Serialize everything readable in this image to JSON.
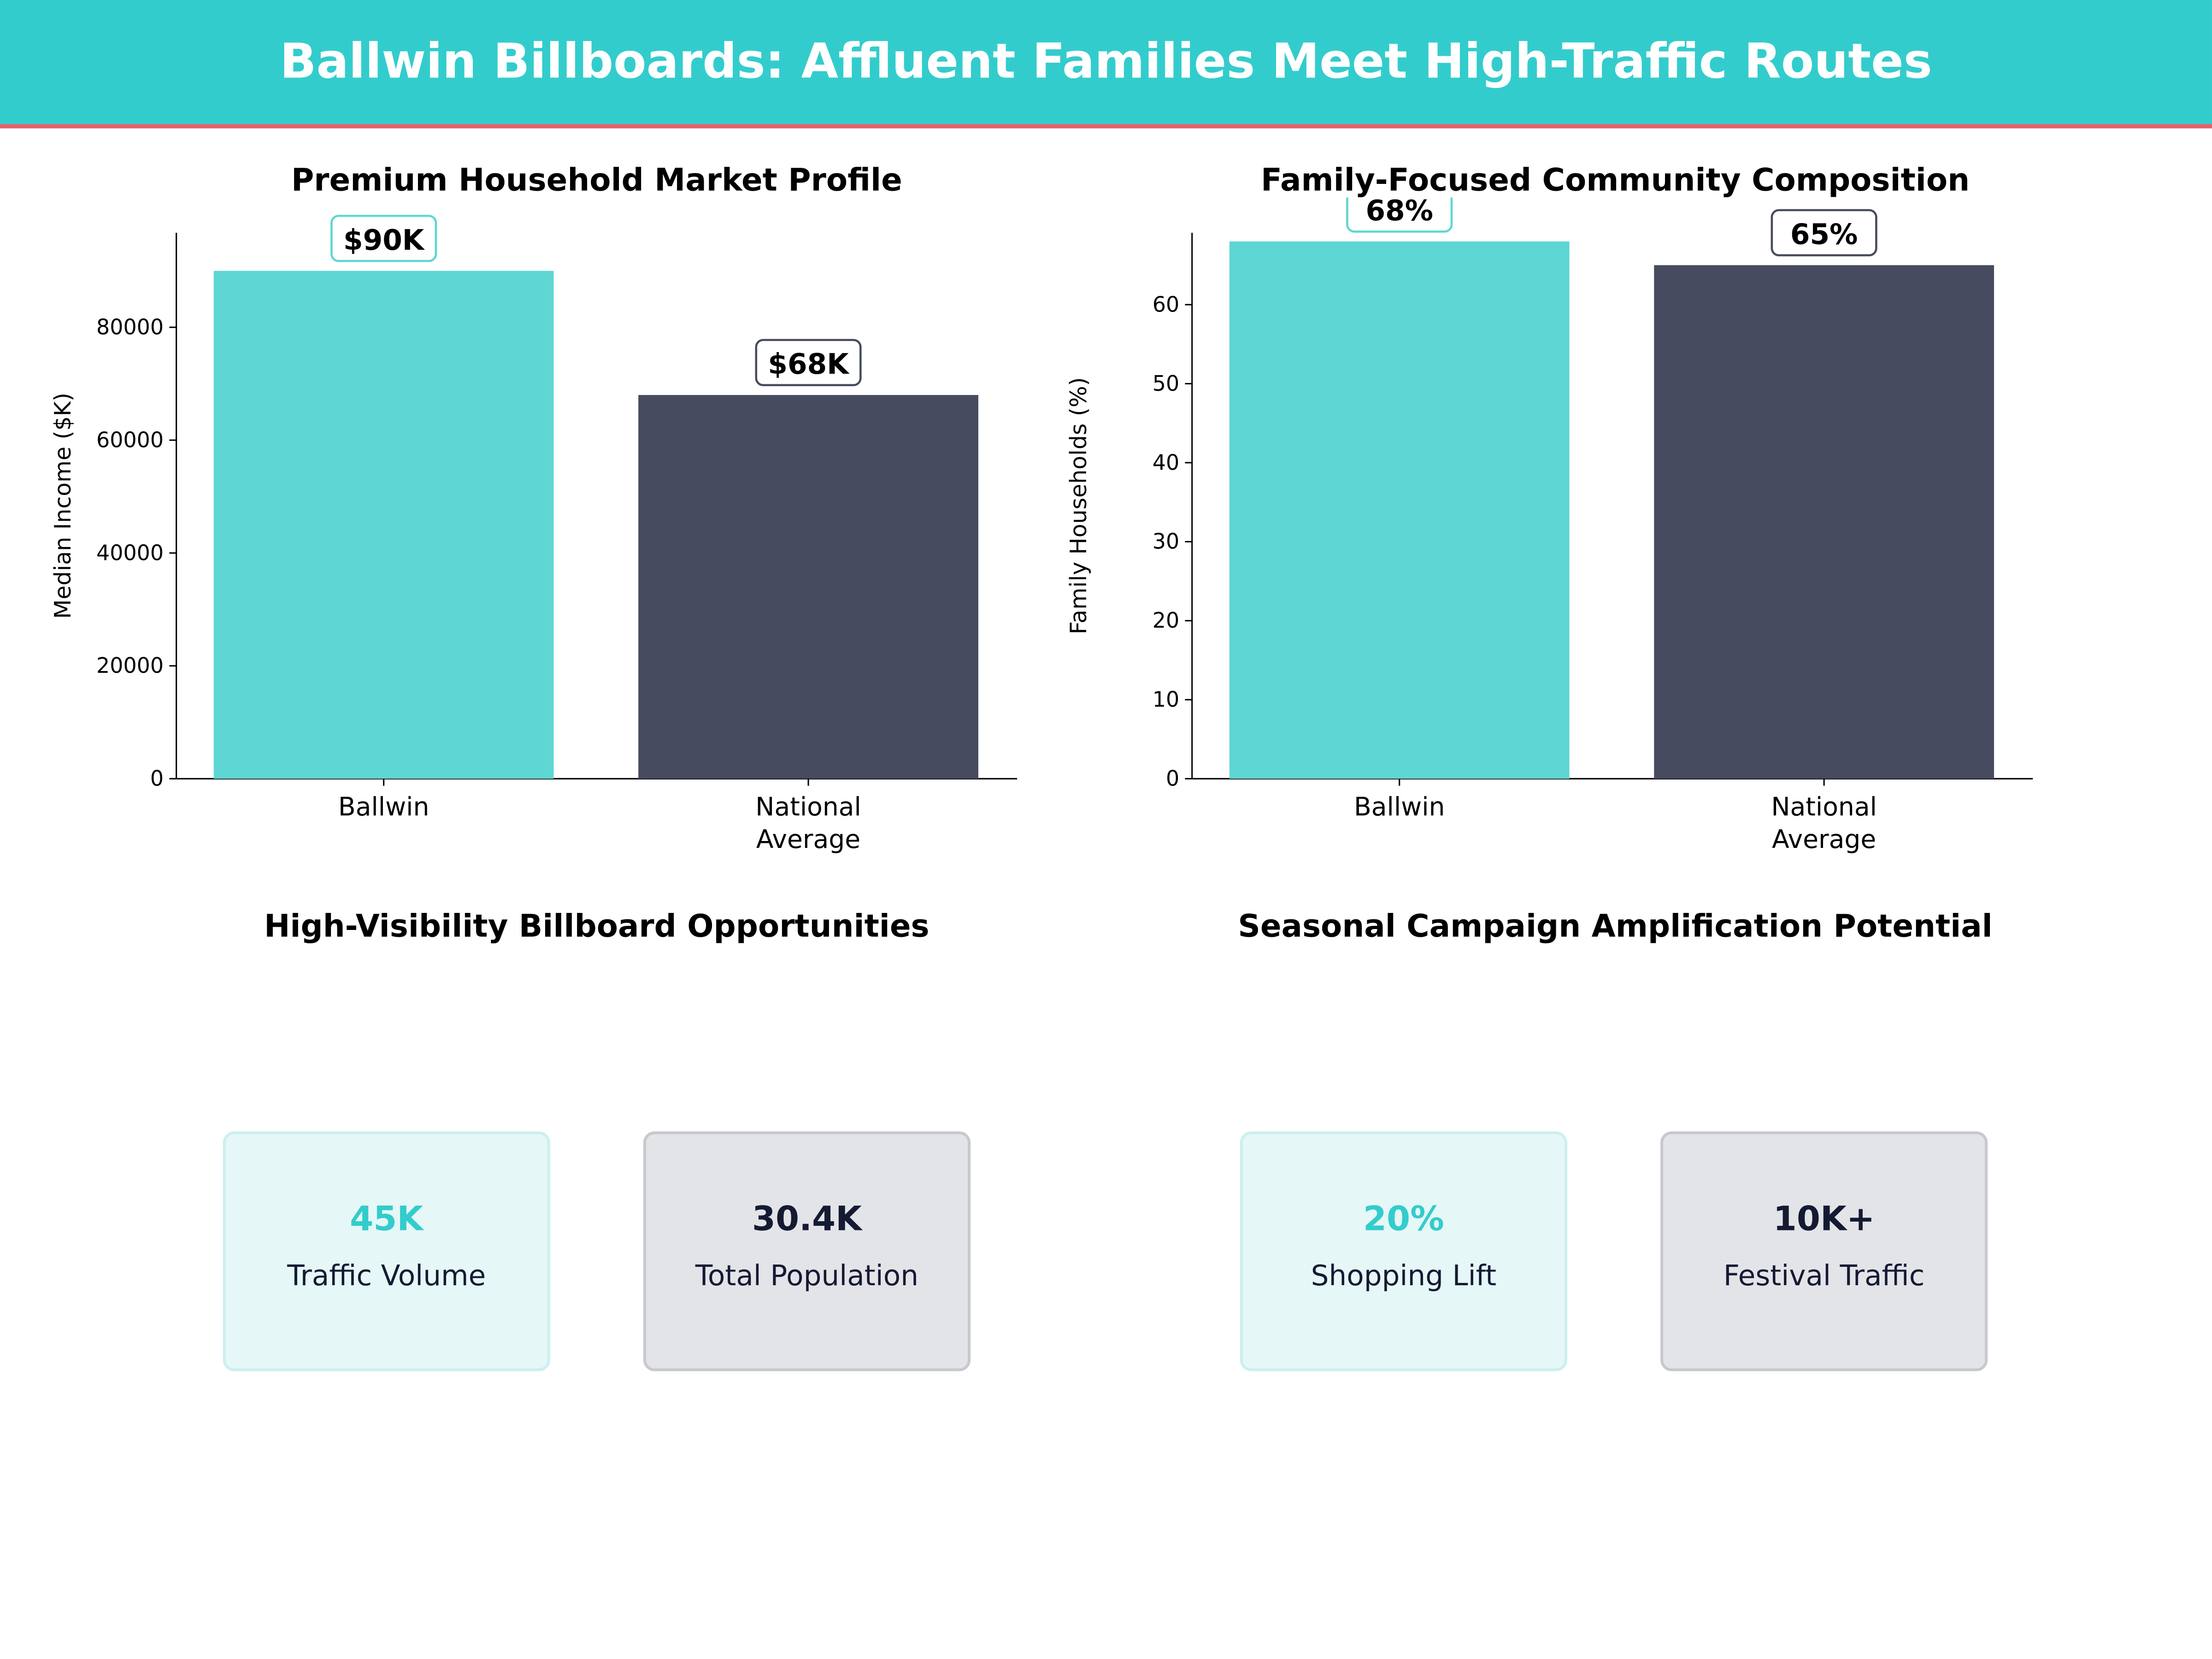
{
  "header": {
    "title": "Ballwin Billboards: Affluent Families Meet High-Traffic Routes"
  },
  "colors": {
    "header": "#33CCCC",
    "accent_line": "#E8606A",
    "ballwin": "#5DD6D4",
    "national": "#464B60",
    "dark_text": "#151A33"
  },
  "chart_data": [
    {
      "type": "bar",
      "title": "Premium Household Market Profile",
      "xlabel": "",
      "ylabel": "Median Income ($K)",
      "categories": [
        "Ballwin",
        "National\nAverage"
      ],
      "values": [
        90000,
        68000
      ],
      "data_labels": [
        "$90K",
        "$68K"
      ],
      "ylim": [
        0,
        96750
      ],
      "yticks": [
        0,
        20000,
        40000,
        60000,
        80000
      ],
      "grid": false
    },
    {
      "type": "bar",
      "title": "Family-Focused Community Composition",
      "xlabel": "",
      "ylabel": "Family Households (%)",
      "categories": [
        "Ballwin",
        "National\nAverage"
      ],
      "values": [
        68,
        65
      ],
      "data_labels": [
        "68%",
        "65%"
      ],
      "ylim": [
        0,
        69.1
      ],
      "yticks": [
        0,
        10,
        20,
        30,
        40,
        50,
        60
      ],
      "grid": false
    }
  ],
  "panels": [
    {
      "title": "High-Visibility Billboard Opportunities",
      "cards": [
        {
          "value": "45K",
          "label": "Traffic Volume"
        },
        {
          "value": "30.4K",
          "label": "Total Population"
        }
      ]
    },
    {
      "title": "Seasonal Campaign Amplification Potential",
      "cards": [
        {
          "value": "20%",
          "label": "Shopping Lift"
        },
        {
          "value": "10K+",
          "label": "Festival Traffic"
        }
      ]
    }
  ]
}
